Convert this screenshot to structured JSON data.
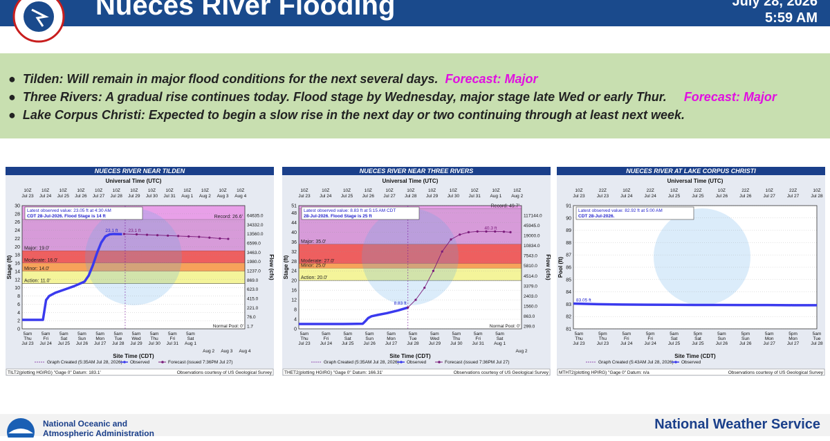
{
  "header": {
    "title": "Nueces River Flooding",
    "date_line": "July 28, 2026",
    "time_line": "5:59 AM"
  },
  "bullets": [
    {
      "text": "Tilden: Will remain in major flood conditions for the next several days.",
      "forecast": "Forecast: Major"
    },
    {
      "text": "Three Rivers: A gradual rise continues today. Flood stage by Wednesday, major stage late Wed or early Thur.",
      "forecast": "Forecast: Major"
    },
    {
      "text": "Lake Corpus Christi: Expected to begin a slow rise in the next day or two continuing through at least next week.",
      "forecast": ""
    }
  ],
  "footer": {
    "noaa_line1": "National Oceanic and",
    "noaa_line2": "Atmospheric Administration",
    "nws": "National Weather Service",
    "logo_text": "NOAA"
  },
  "colors": {
    "header": "#1a4a8c",
    "bullets_bg": "#c8dfb0",
    "forecast": "#e010e0",
    "panel_title": "#1a3f8a",
    "observed": "#3a3aee",
    "forecast_line": "#7a1a7a",
    "record": "#e8a0e8",
    "major": "#d79bd9",
    "moderate": "#ee5f5f",
    "minor": "#f7a25a",
    "action": "#f4f49a"
  },
  "chart_data": [
    {
      "type": "line",
      "title": "NUECES RIVER NEAR TILDEN",
      "top_axis_title": "Universal Time (UTC)",
      "xlabel": "Site Time (CDT)",
      "ylabel": "Stage (ft)",
      "ylabel_right": "Flow (cfs)",
      "ylim": [
        0,
        30
      ],
      "yticks": [
        0,
        2,
        4,
        6,
        8,
        10,
        12,
        14,
        16,
        18,
        20,
        22,
        24,
        26,
        28,
        30
      ],
      "right_ticks": [
        "64635.0",
        "34332.0",
        "13560.0",
        "6599.0",
        "3463.0",
        "1980.0",
        "1237.0",
        "869.0",
        "623.0",
        "415.0",
        "221.0",
        "76.0",
        "1.7"
      ],
      "top_ticks": [
        "10Z Jul 23",
        "10Z Jul 24",
        "10Z Jul 25",
        "10Z Jul 26",
        "10Z Jul 27",
        "10Z Jul 28",
        "10Z Jul 29",
        "10Z Jul 30",
        "10Z Jul 31",
        "10Z Aug 1",
        "10Z Aug 2",
        "10Z Aug 3",
        "10Z Aug 4"
      ],
      "bottom_ticks_upper": [
        "5am Thu Jul 23",
        "5am Fri Jul 24",
        "5am Sat Jul 25",
        "5am Sun Jul 26",
        "5am Mon Jul 27",
        "5am Tue Jul 28",
        "5am Wed Jul 29",
        "5am Thu Jul 30",
        "5am Fri Jul 31",
        "5am Sat Aug 1"
      ],
      "bottom_ticks_lower": [
        "Aug 2",
        "Aug 3",
        "Aug 4"
      ],
      "thresholds": [
        {
          "label": "Record: 26.6'",
          "value": 26.6
        },
        {
          "label": "Major: 19.0'",
          "value": 19.0
        },
        {
          "label": "Moderate: 16.0'",
          "value": 16.0
        },
        {
          "label": "Minor: 14.0'",
          "value": 14.0
        },
        {
          "label": "Action: 11.0'",
          "value": 11.0
        }
      ],
      "normal_pool": "Normal Pool: 0'",
      "annotation": {
        "line1": "Latest observed value: 23.05 ft at 4:30 AM",
        "line2": "CDT 28-Jul-2026. Flood Stage is 14 ft"
      },
      "peak_labels": [
        "23.1 ft",
        "23.1 ft"
      ],
      "observed": {
        "name": "Observed",
        "x": [
          0,
          0.5,
          1.0,
          1.15,
          1.3,
          1.6,
          2.0,
          2.5,
          3.0,
          3.2,
          3.4,
          3.6,
          3.8,
          4.0,
          4.2,
          4.4,
          4.8
        ],
        "y": [
          2.2,
          2.2,
          2.2,
          7.0,
          8.0,
          8.8,
          9.5,
          10.4,
          11.5,
          13.0,
          15.5,
          18.5,
          21.0,
          22.5,
          23.0,
          23.1,
          23.05
        ]
      },
      "forecast": {
        "name": "Forecast (issued 7:36PM Jul 27)",
        "x": [
          4.9,
          5.5,
          6.0,
          6.5,
          7.0,
          7.5,
          8.0,
          8.5,
          9.0,
          9.5,
          9.9
        ],
        "y": [
          23.1,
          23.0,
          22.9,
          22.8,
          22.7,
          22.6,
          22.5,
          22.4,
          22.2,
          22.0,
          21.9
        ]
      },
      "now_x": 4.95,
      "xlim": [
        0,
        10.7
      ],
      "legend": [
        "Graph Created (5:35AM Jul 28, 2026)",
        "Observed",
        "Forecast (issued 7:36PM Jul 27)"
      ],
      "footer_left": "TILT2(plotting HGIRG) \"Gage 0\" Datum: 183.1'",
      "footer_right": "Observations courtesy of US Geological Survey"
    },
    {
      "type": "line",
      "title": "NUECES RIVER NEAR THREE RIVERS",
      "top_axis_title": "Universal Time (UTC)",
      "xlabel": "Site Time (CDT)",
      "ylabel": "Stage (ft)",
      "ylabel_right": "Flow (cfs)",
      "ylim": [
        0,
        51
      ],
      "yticks": [
        0,
        4,
        8,
        12,
        16,
        20,
        24,
        28,
        32,
        36,
        40,
        44,
        48,
        51
      ],
      "right_ticks": [
        "117144.0",
        "45945.0",
        "19000.0",
        "10834.0",
        "7543.0",
        "5810.0",
        "4514.0",
        "3379.0",
        "2403.0",
        "1560.0",
        "863.0",
        "299.0"
      ],
      "top_ticks": [
        "10Z Jul 23",
        "10Z Jul 24",
        "10Z Jul 25",
        "10Z Jul 26",
        "10Z Jul 27",
        "10Z Jul 28",
        "10Z Jul 29",
        "10Z Jul 30",
        "10Z Jul 31",
        "10Z Aug 1",
        "10Z Aug 2"
      ],
      "bottom_ticks_upper": [
        "5am Thu Jul 23",
        "5am Fri Jul 24",
        "5am Sat Jul 25",
        "5am Sun Jul 26",
        "5am Mon Jul 27",
        "5am Tue Jul 28",
        "5am Wed Jul 29",
        "5am Thu Jul 30",
        "5am Fri Jul 31",
        "5am Sat Aug 1"
      ],
      "bottom_ticks_lower": [
        "Aug 2"
      ],
      "thresholds": [
        {
          "label": "Record: 49.7'",
          "value": 49.7
        },
        {
          "label": "Major: 35.0'",
          "value": 35.0
        },
        {
          "label": "Moderate: 27.0'",
          "value": 27.0
        },
        {
          "label": "Minor: 25.0'",
          "value": 25.0
        },
        {
          "label": "Action: 20.0'",
          "value": 20.0
        }
      ],
      "normal_pool": "Normal Pool: 0'",
      "annotation": {
        "line1": "Latest observed value: 8.83 ft at 5:15 AM CDT",
        "line2": "28-Jul-2026. Flood Stage is 25 ft"
      },
      "peak_labels": [
        "8.83 ft",
        "40.3 ft"
      ],
      "observed": {
        "name": "Observed",
        "x": [
          0,
          1.0,
          2.0,
          2.9,
          3.0,
          3.15,
          3.3,
          3.6,
          4.0,
          4.5,
          4.95
        ],
        "y": [
          2.0,
          2.0,
          2.0,
          2.1,
          3.0,
          4.5,
          5.2,
          5.8,
          6.5,
          7.6,
          8.83
        ]
      },
      "forecast": {
        "name": "Forecast (issued 7:36PM Jul 27)",
        "x": [
          4.95,
          5.3,
          5.7,
          6.1,
          6.5,
          6.9,
          7.3,
          7.7,
          8.1,
          8.5,
          8.9,
          9.3,
          9.6
        ],
        "y": [
          8.83,
          12.0,
          17.0,
          24.0,
          32.0,
          37.0,
          39.0,
          40.0,
          40.3,
          40.3,
          40.3,
          40.2,
          40.0
        ]
      },
      "now_x": 4.95,
      "xlim": [
        0,
        10.1
      ],
      "legend": [
        "Graph Created (5:35AM Jul 28, 2026)",
        "Observed",
        "Forecast (issued 7:36PM Jul 27)"
      ],
      "footer_left": "THET2(plotting HGIRG) \"Gage 0\" Datum: 166.31'",
      "footer_right": "Observations courtesy of US Geological Survey"
    },
    {
      "type": "line",
      "title": "NUECES RIVER AT LAKE CORPUS CHRISTI",
      "top_axis_title": "Universal Time (UTC)",
      "xlabel": "Site Time (CDT)",
      "ylabel": "Pool (ft)",
      "ylim": [
        81,
        91
      ],
      "yticks": [
        81,
        82,
        83,
        84,
        85,
        86,
        87,
        88,
        89,
        90,
        91
      ],
      "top_ticks": [
        "10Z Jul 23",
        "22Z Jul 23",
        "10Z Jul 24",
        "22Z Jul 24",
        "10Z Jul 25",
        "22Z Jul 25",
        "10Z Jul 26",
        "22Z Jul 26",
        "10Z Jul 27",
        "22Z Jul 27",
        "10Z Jul 28"
      ],
      "bottom_ticks_upper": [
        "5am Thu Jul 23",
        "5pm Thu Jul 23",
        "5am Fri Jul 24",
        "5pm Fri Jul 24",
        "5am Sat Jul 25",
        "5pm Sat Jul 25",
        "5am Sun Jul 26",
        "5pm Sun Jul 26",
        "5am Mon Jul 27",
        "5pm Mon Jul 27",
        "5am Tue Jul 28"
      ],
      "bottom_ticks_lower": [],
      "thresholds": [],
      "annotation": {
        "line1": "Latest observed value: 82.92 ft at 5:00 AM",
        "line2": "CDT 28-Jul-2026."
      },
      "peak_labels": [
        "83.05 ft"
      ],
      "observed": {
        "name": "Observed",
        "x": [
          0,
          1,
          2,
          3,
          4,
          5,
          6,
          7,
          8,
          9,
          10
        ],
        "y": [
          83.05,
          83.0,
          82.97,
          82.96,
          82.95,
          82.94,
          82.94,
          82.93,
          82.93,
          82.92,
          82.92
        ]
      },
      "xlim": [
        0,
        10
      ],
      "legend": [
        "Graph Created (5:43AM Jul 28, 2026)",
        "Observed"
      ],
      "footer_left": "MTHT2(plotting HPIRG) \"Gage 0\" Datum: n/a",
      "footer_right": "Observations courtesy of US Geological Survey"
    }
  ]
}
